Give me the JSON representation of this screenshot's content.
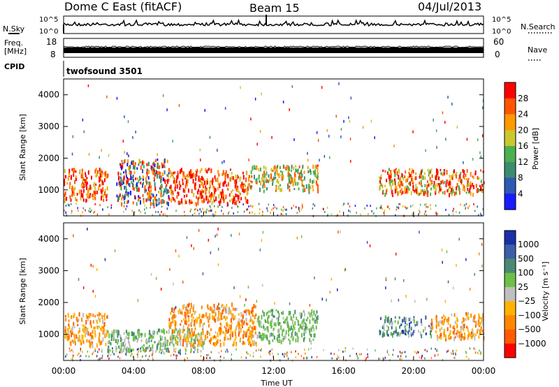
{
  "header": {
    "title": "Dome C East (fitACF)",
    "beam": "Beam 15",
    "date": "04/Jul/2013"
  },
  "panels": {
    "nsky": {
      "label": "N.Sky",
      "top_tick": "10^5",
      "bottom_tick": "10^0",
      "right_label": "N.Search",
      "right_top_tick": "10^5",
      "right_bottom_tick": "10^0"
    },
    "freq": {
      "label_line1": "Freq.",
      "label_line2": "[MHz]",
      "top_tick": "18",
      "bottom_tick": "8",
      "right_label": "Nave",
      "right_top_tick": "60",
      "right_bottom_tick": "0"
    },
    "cpid": {
      "label": "CPID",
      "value": "twofsound 3501"
    }
  },
  "chart_data": [
    {
      "type": "heatmap",
      "name": "power",
      "ylabel": "Slant Range [km]",
      "xlabel": "",
      "y_ticks": [
        "1000",
        "2000",
        "3000",
        "4000"
      ],
      "ylim": [
        180,
        4500
      ],
      "colorbar": {
        "label": "Power [dB]",
        "ticks": [
          "4",
          "8",
          "12",
          "16",
          "20",
          "24",
          "28"
        ]
      },
      "regions": [
        {
          "x": [
            0.0,
            2.5
          ],
          "y": [
            700,
            1700
          ],
          "level": "high"
        },
        {
          "x": [
            3.0,
            6.0
          ],
          "y": [
            600,
            2000
          ],
          "level": "mixed"
        },
        {
          "x": [
            6.0,
            10.5
          ],
          "y": [
            600,
            1700
          ],
          "level": "high"
        },
        {
          "x": [
            10.5,
            14.5
          ],
          "y": [
            1000,
            1800
          ],
          "level": "mid"
        },
        {
          "x": [
            18.0,
            24.0
          ],
          "y": [
            900,
            1700
          ],
          "level": "mid-high"
        }
      ]
    },
    {
      "type": "heatmap",
      "name": "velocity",
      "ylabel": "Slant Range [km]",
      "xlabel": "Time UT",
      "y_ticks": [
        "1000",
        "2000",
        "3000",
        "4000"
      ],
      "ylim": [
        180,
        4500
      ],
      "x_ticks": [
        "00:00",
        "04:00",
        "08:00",
        "12:00",
        "16:00",
        "20:00",
        "00:00"
      ],
      "colorbar": {
        "label": "Velocity [m s⁻¹]",
        "ticks": [
          "1000",
          "500",
          "100",
          "25",
          "−25",
          "−100",
          "−500",
          "−1000"
        ]
      },
      "regions": [
        {
          "x": [
            0.0,
            2.5
          ],
          "y": [
            700,
            1700
          ],
          "level": "orange"
        },
        {
          "x": [
            2.5,
            8.0
          ],
          "y": [
            500,
            1200
          ],
          "level": "green"
        },
        {
          "x": [
            6.0,
            11.0
          ],
          "y": [
            700,
            2000
          ],
          "level": "orange"
        },
        {
          "x": [
            11.0,
            14.5
          ],
          "y": [
            800,
            1800
          ],
          "level": "green"
        },
        {
          "x": [
            18.0,
            21.0
          ],
          "y": [
            1000,
            1600
          ],
          "level": "blue-green"
        },
        {
          "x": [
            21.0,
            24.0
          ],
          "y": [
            900,
            1700
          ],
          "level": "orange"
        }
      ]
    }
  ],
  "colors": {
    "power_scale": [
      "#1a1aff",
      "#2e59b4",
      "#3c8c6e",
      "#4caf50",
      "#c9c92e",
      "#ff9900",
      "#ff5500",
      "#ff0000"
    ],
    "velocity_scale": [
      "#1b2fa6",
      "#3c5ea8",
      "#4b8a72",
      "#6cc04a",
      "#bfbfbf",
      "#ffb300",
      "#ff8800",
      "#ff5a00",
      "#ff0000"
    ]
  }
}
